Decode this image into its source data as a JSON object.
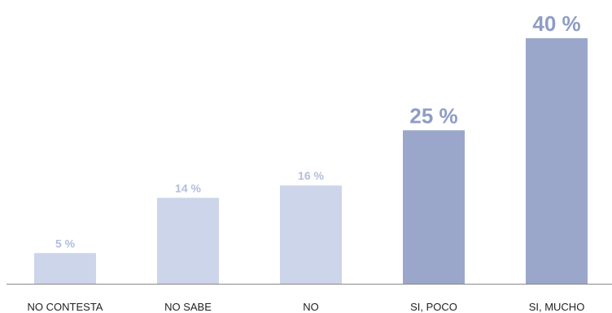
{
  "chart_data": {
    "type": "bar",
    "categories": [
      "NO CONTESTA",
      "NO SABE",
      "NO",
      "SI, POCO",
      "SI, MUCHO"
    ],
    "values": [
      5,
      14,
      16,
      25,
      40
    ],
    "value_labels": [
      "5 %",
      "14 %",
      "16 %",
      "25 %",
      "40 %"
    ],
    "highlighted": [
      false,
      false,
      false,
      true,
      true
    ],
    "title": "",
    "xlabel": "",
    "ylabel": "",
    "ylim": [
      0,
      40
    ],
    "grid": false,
    "colors": {
      "light_bar": "#cdd5ea",
      "dark_bar": "#9aa7cb",
      "light_label": "#b3bedc",
      "dark_label": "#8f9cc4",
      "axis": "#888888"
    }
  }
}
